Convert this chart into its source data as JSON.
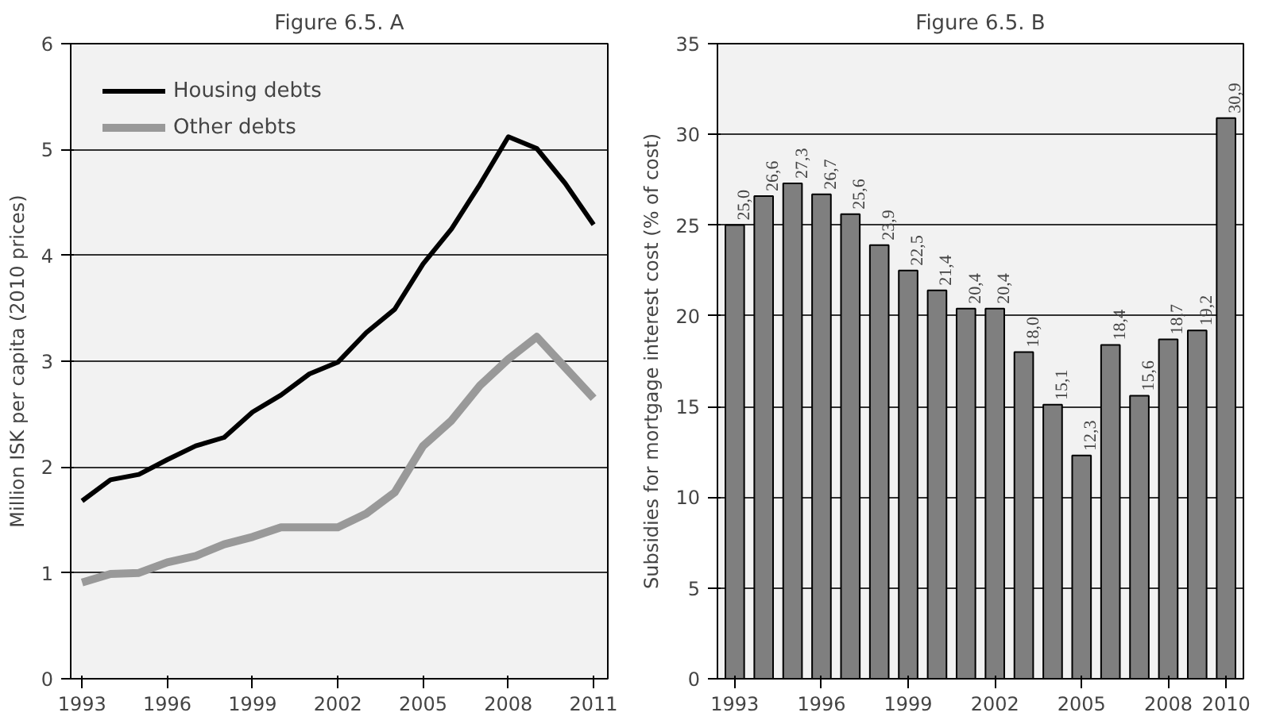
{
  "chart_data": [
    {
      "type": "line",
      "title": "Figure 6.5. A",
      "ylabel": "Million ISK per capita (2010 prices)",
      "x": [
        1993,
        1994,
        1995,
        1996,
        1997,
        1998,
        1999,
        2000,
        2001,
        2002,
        2003,
        2004,
        2005,
        2006,
        2007,
        2008,
        2009,
        2010,
        2011
      ],
      "series": [
        {
          "name": "Housing debts",
          "color": "#000000",
          "values": [
            1.68,
            1.88,
            1.93,
            2.07,
            2.2,
            2.28,
            2.52,
            2.68,
            2.88,
            2.99,
            3.27,
            3.49,
            3.92,
            4.25,
            4.67,
            5.12,
            5.01,
            4.68,
            4.29
          ]
        },
        {
          "name": "Other debts",
          "color": "#999999",
          "values": [
            0.91,
            0.99,
            1.0,
            1.1,
            1.16,
            1.27,
            1.34,
            1.43,
            1.43,
            1.43,
            1.56,
            1.76,
            2.2,
            2.44,
            2.77,
            3.02,
            3.23,
            2.94,
            2.65
          ]
        }
      ],
      "xlim": [
        1992.6,
        2011.5
      ],
      "xticks": [
        1993,
        1996,
        1999,
        2002,
        2005,
        2008,
        2011
      ],
      "ylim": [
        0,
        6
      ],
      "yticks": [
        0,
        1,
        2,
        3,
        4,
        5,
        6
      ],
      "grid": "y",
      "legend": "top left",
      "line_style": "solid",
      "marker": "none"
    },
    {
      "type": "bar",
      "title": "Figure 6.5. B",
      "ylabel": "Subsidies for mortgage interest cost (% of cost)",
      "x": [
        1993,
        1994,
        1995,
        1996,
        1997,
        1998,
        1999,
        2000,
        2001,
        2002,
        2003,
        2004,
        2005,
        2006,
        2007,
        2008,
        2009,
        2010
      ],
      "series": [
        {
          "color": "#7f7f7f",
          "values": [
            25.0,
            26.6,
            27.3,
            26.7,
            25.6,
            23.9,
            22.5,
            21.4,
            20.4,
            20.4,
            18.0,
            15.1,
            12.3,
            18.4,
            15.6,
            18.7,
            19.2,
            30.9
          ],
          "value_labels": [
            "25,0",
            "26,6",
            "27,3",
            "26,7",
            "25,6",
            "23,9",
            "22,5",
            "21,4",
            "20,4",
            "20,4",
            "18,0",
            "15,1",
            "12,3",
            "18,4",
            "15,6",
            "18,7",
            "19,2",
            "30,9"
          ]
        }
      ],
      "xlim": [
        1992.4,
        2010.6
      ],
      "xticks": [
        1993,
        1996,
        1999,
        2002,
        2005,
        2008,
        2010
      ],
      "ylim": [
        0,
        35
      ],
      "yticks": [
        0,
        5,
        10,
        15,
        20,
        25,
        30,
        35
      ],
      "grid": "y",
      "legend": false
    }
  ]
}
